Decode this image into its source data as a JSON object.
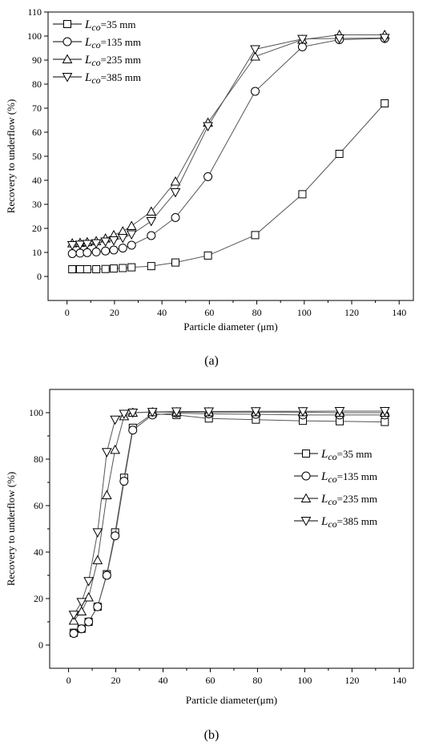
{
  "chart_data": [
    {
      "type": "line",
      "panel_label": "(a)",
      "xlabel": "Particle diameter (μm)",
      "ylabel": "Recovery to underflow (%)",
      "xlim": [
        -8,
        146
      ],
      "ylim": [
        -10,
        110
      ],
      "xticks": [
        0,
        20,
        40,
        60,
        80,
        100,
        120,
        140
      ],
      "yticks": [
        0,
        10,
        20,
        30,
        40,
        50,
        60,
        70,
        80,
        90,
        100,
        110
      ],
      "grid": false,
      "legend_position": "top-left",
      "x": [
        2.2,
        5.5,
        8.5,
        12.3,
        16.2,
        19.7,
        23.5,
        27.2,
        35.5,
        45.7,
        59.4,
        79.3,
        99.2,
        114.8,
        133.9
      ],
      "series": [
        {
          "label_prefix": "L",
          "label_sub": "co",
          "label_suffix": "=35 mm",
          "marker": "square",
          "values": [
            3,
            3,
            3,
            3,
            3.1,
            3.3,
            3.5,
            3.8,
            4.3,
            5.8,
            8.7,
            17.2,
            34.2,
            51,
            72
          ]
        },
        {
          "label_prefix": "L",
          "label_sub": "co",
          "label_suffix": "=135 mm",
          "marker": "circle",
          "values": [
            9.5,
            9.7,
            9.9,
            10.2,
            10.6,
            11,
            11.8,
            13,
            17,
            24.5,
            41.5,
            77,
            95.5,
            98.5,
            99
          ]
        },
        {
          "label_prefix": "L",
          "label_sub": "co",
          "label_suffix": "=235 mm",
          "marker": "triangle-up",
          "values": [
            13.8,
            14,
            14.3,
            14.7,
            15.8,
            17.2,
            18.8,
            21,
            27,
            39.5,
            64,
            91.5,
            98.5,
            100.5,
            100.5
          ]
        },
        {
          "label_prefix": "L",
          "label_sub": "co",
          "label_suffix": "=385 mm",
          "marker": "triangle-down",
          "values": [
            13,
            13.2,
            13.5,
            13.8,
            14.5,
            15,
            16,
            17.5,
            23,
            35,
            62.5,
            94.5,
            98.8,
            99,
            99.2
          ]
        }
      ]
    },
    {
      "type": "line",
      "panel_label": "(b)",
      "xlabel": "Particle diameter(μm)",
      "ylabel": "Recovery to underflow (%)",
      "xlim": [
        -8,
        146
      ],
      "ylim": [
        -10,
        110
      ],
      "xticks": [
        0,
        20,
        40,
        60,
        80,
        100,
        120,
        140
      ],
      "yticks": [
        0,
        20,
        40,
        60,
        80,
        100
      ],
      "grid": false,
      "legend_position": "right",
      "x": [
        2.2,
        5.5,
        8.5,
        12.3,
        16.2,
        19.7,
        23.5,
        27.2,
        35.5,
        45.7,
        59.4,
        79.3,
        99.2,
        114.8,
        133.9
      ],
      "series": [
        {
          "label_prefix": "L",
          "label_sub": "co",
          "label_suffix": "=35 mm",
          "marker": "square",
          "values": [
            5.3,
            7,
            10,
            16.5,
            30.5,
            48.5,
            72,
            93.5,
            99.5,
            99,
            97.5,
            97,
            96.5,
            96.3,
            96
          ]
        },
        {
          "label_prefix": "L",
          "label_sub": "co",
          "label_suffix": "=135 mm",
          "marker": "circle",
          "values": [
            5,
            7,
            10,
            16.5,
            30,
            47,
            70.5,
            92.5,
            99,
            99.8,
            99.5,
            99.3,
            99,
            99,
            99
          ]
        },
        {
          "label_prefix": "L",
          "label_sub": "co",
          "label_suffix": "=235 mm",
          "marker": "triangle-up",
          "values": [
            10.5,
            14.5,
            20.5,
            36.5,
            64.5,
            84,
            98.5,
            100,
            100.2,
            100.2,
            100.2,
            100.2,
            100.2,
            100,
            100
          ]
        },
        {
          "label_prefix": "L",
          "label_sub": "co",
          "label_suffix": "=385 mm",
          "marker": "triangle-down",
          "values": [
            13,
            18.5,
            27.5,
            48.5,
            83,
            97,
            99.5,
            100,
            100.3,
            100.5,
            100.5,
            100.6,
            100.6,
            100.7,
            100.7
          ]
        }
      ]
    }
  ]
}
